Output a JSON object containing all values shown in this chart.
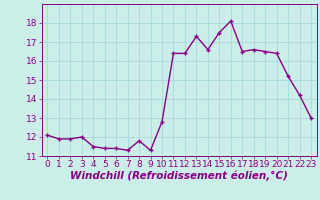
{
  "x": [
    0,
    1,
    2,
    3,
    4,
    5,
    6,
    7,
    8,
    9,
    10,
    11,
    12,
    13,
    14,
    15,
    16,
    17,
    18,
    19,
    20,
    21,
    22,
    23
  ],
  "y": [
    12.1,
    11.9,
    11.9,
    12.0,
    11.5,
    11.4,
    11.4,
    11.3,
    11.8,
    11.3,
    12.8,
    16.4,
    16.4,
    17.3,
    16.6,
    17.5,
    18.1,
    16.5,
    16.6,
    16.5,
    16.4,
    15.2,
    14.2,
    13.0
  ],
  "line_color": "#880088",
  "marker": "+",
  "marker_size": 3,
  "marker_linewidth": 1.0,
  "line_width": 1.0,
  "bg_color": "#cceee8",
  "grid_color": "#aadddd",
  "xlabel": "Windchill (Refroidissement éolien,°C)",
  "xlabel_color": "#880088",
  "xlabel_fontsize": 7.5,
  "tick_color": "#880088",
  "tick_fontsize": 6.5,
  "ylim": [
    11,
    19
  ],
  "xlim": [
    -0.5,
    23.5
  ],
  "yticks": [
    11,
    12,
    13,
    14,
    15,
    16,
    17,
    18
  ],
  "xticks": [
    0,
    1,
    2,
    3,
    4,
    5,
    6,
    7,
    8,
    9,
    10,
    11,
    12,
    13,
    14,
    15,
    16,
    17,
    18,
    19,
    20,
    21,
    22,
    23
  ]
}
